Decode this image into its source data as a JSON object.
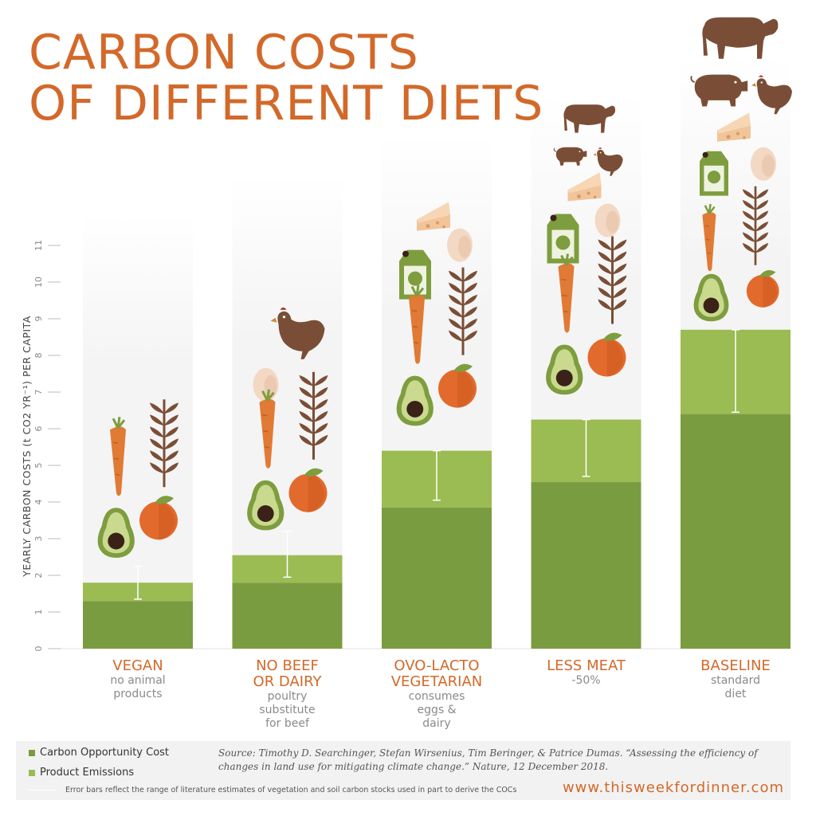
{
  "title": {
    "line1": "CARBON COSTS",
    "line2": "OF DIFFERENT DIETS"
  },
  "chart_data": {
    "type": "bar",
    "stacked": true,
    "ylabel": "YEARLY CARBON COSTS (t CO2 YR⁻¹) PER CAPITA",
    "ylim": [
      0,
      11
    ],
    "yticks": [
      "0",
      "1",
      "2",
      "3",
      "4",
      "5",
      "6",
      "7",
      "8",
      "9",
      "10",
      "11"
    ],
    "categories": [
      {
        "name": "VEGAN",
        "desc": "no animal\nproducts"
      },
      {
        "name": "NO BEEF\nOR DAIRY",
        "desc": "poultry\nsubstitute\nfor beef"
      },
      {
        "name": "OVO-LACTO\nVEGETARIAN",
        "desc": "consumes\neggs &\ndairy"
      },
      {
        "name": "LESS MEAT",
        "desc": "-50%"
      },
      {
        "name": "BASELINE",
        "desc": "standard\ndiet"
      }
    ],
    "series": [
      {
        "name": "Carbon Opportunity Cost",
        "color": "#7a9c40",
        "values": [
          1.3,
          1.8,
          3.85,
          4.55,
          6.4
        ]
      },
      {
        "name": "Product Emissions",
        "color": "#9bbb53",
        "values": [
          0.5,
          0.75,
          1.55,
          1.7,
          2.3
        ]
      }
    ],
    "error_bars": [
      {
        "low": 1.35,
        "high": 2.25
      },
      {
        "low": 1.95,
        "high": 3.2
      },
      {
        "low": 4.05,
        "high": 5.4
      },
      {
        "low": 4.7,
        "high": 6.25
      },
      {
        "low": 6.45,
        "high": 8.7
      }
    ],
    "icons": [
      [
        "carrot-icon",
        "wheat-icon",
        "avocado-icon",
        "orange-icon"
      ],
      [
        "chicken-icon",
        "egg-icon",
        "carrot-icon",
        "wheat-icon",
        "avocado-icon",
        "orange-icon"
      ],
      [
        "cheese-icon",
        "milk-carton-icon",
        "egg-icon",
        "carrot-icon",
        "wheat-icon",
        "avocado-icon",
        "orange-icon"
      ],
      [
        "cow-icon",
        "pig-icon",
        "chicken-icon",
        "cheese-icon",
        "milk-carton-icon",
        "egg-icon",
        "carrot-icon",
        "wheat-icon",
        "avocado-icon",
        "orange-icon"
      ],
      [
        "cow-icon",
        "pig-icon",
        "chicken-icon",
        "cheese-icon",
        "milk-carton-icon",
        "egg-icon",
        "carrot-icon",
        "wheat-icon",
        "avocado-icon",
        "orange-icon"
      ]
    ]
  },
  "legend": {
    "coc_label": "Carbon Opportunity Cost",
    "pe_label": "Product Emissions",
    "coc_color": "#7a9c40",
    "pe_color": "#9bbb53",
    "error_note": "Error bars reflect the range of literature estimates of vegetation and soil carbon stocks used in part to derive the COCs"
  },
  "source": "Source: Timothy D. Searchinger, Stefan Wirsenius, Tim Beringer, & Patrice Dumas. “Assessing the efficiency of changes in land use for mitigating climate change.” Nature, 12 December 2018.",
  "url": "www.thisweekfordinner.com",
  "colors": {
    "accent": "#d2692a",
    "carrot": "#e07a35",
    "orange": "#e26a2c",
    "avocado_outer": "#7e9d3e",
    "avocado_inner": "#c9d98e",
    "pit": "#3a2218",
    "brown": "#7a4e36",
    "egg": "#f3d8c4",
    "cheese": "#f1c49a"
  }
}
